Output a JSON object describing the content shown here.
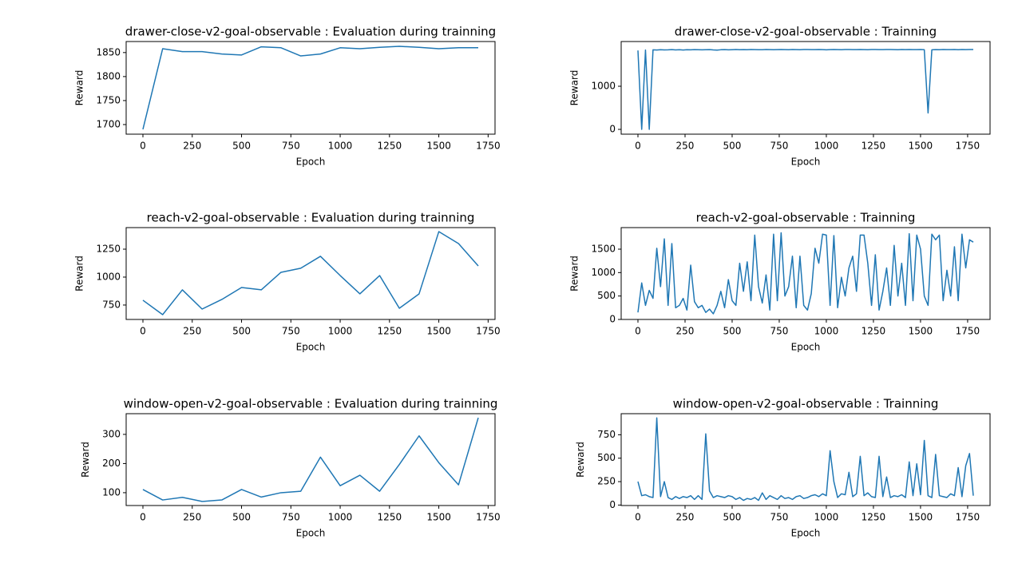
{
  "chart_data": [
    {
      "type": "line",
      "title": "drawer-close-v2-goal-observable : Evaluation during trainning",
      "xlabel": "Epoch",
      "ylabel": "Reward",
      "color": "#1f77b4",
      "x": [
        0,
        100,
        200,
        300,
        400,
        500,
        600,
        700,
        800,
        900,
        1000,
        1100,
        1200,
        1300,
        1400,
        1500,
        1600,
        1700
      ],
      "values": [
        1690,
        1858,
        1852,
        1852,
        1847,
        1845,
        1862,
        1860,
        1843,
        1847,
        1860,
        1858,
        1861,
        1863,
        1861,
        1858,
        1860,
        1860
      ],
      "xlim": [
        -85,
        1785
      ],
      "ylim": [
        1680,
        1873
      ],
      "xticks": [
        0,
        250,
        500,
        750,
        1000,
        1250,
        1500,
        1750
      ],
      "yticks": [
        1700,
        1750,
        1800,
        1850
      ]
    },
    {
      "type": "line",
      "title": "drawer-close-v2-goal-observable : Trainning",
      "xlabel": "Epoch",
      "ylabel": "Reward",
      "color": "#1f77b4",
      "x": [
        0,
        20,
        40,
        60,
        80,
        100,
        120,
        140,
        160,
        180,
        200,
        220,
        240,
        260,
        280,
        300,
        320,
        340,
        360,
        380,
        400,
        420,
        440,
        460,
        480,
        500,
        520,
        540,
        560,
        580,
        600,
        620,
        640,
        660,
        680,
        700,
        720,
        740,
        760,
        780,
        800,
        820,
        840,
        860,
        880,
        900,
        920,
        940,
        960,
        980,
        1000,
        1020,
        1040,
        1060,
        1080,
        1100,
        1120,
        1140,
        1160,
        1180,
        1200,
        1220,
        1240,
        1260,
        1280,
        1300,
        1320,
        1340,
        1360,
        1380,
        1400,
        1420,
        1440,
        1460,
        1480,
        1500,
        1520,
        1540,
        1560,
        1580,
        1600,
        1620,
        1640,
        1660,
        1680,
        1700,
        1720,
        1740,
        1760,
        1780
      ],
      "values": [
        1830,
        0,
        1840,
        0,
        1845,
        1840,
        1848,
        1842,
        1845,
        1850,
        1843,
        1846,
        1840,
        1848,
        1845,
        1850,
        1846,
        1844,
        1848,
        1850,
        1842,
        1838,
        1846,
        1850,
        1845,
        1848,
        1852,
        1846,
        1850,
        1848,
        1853,
        1850,
        1848,
        1846,
        1852,
        1850,
        1847,
        1849,
        1852,
        1850,
        1846,
        1852,
        1850,
        1848,
        1851,
        1853,
        1849,
        1850,
        1852,
        1850,
        1844,
        1849,
        1852,
        1850,
        1848,
        1851,
        1853,
        1850,
        1849,
        1852,
        1850,
        1848,
        1852,
        1853,
        1850,
        1849,
        1851,
        1852,
        1850,
        1848,
        1852,
        1850,
        1853,
        1849,
        1850,
        1852,
        1848,
        380,
        1845,
        1850,
        1848,
        1852,
        1849,
        1850,
        1851,
        1848,
        1852,
        1850,
        1851,
        1853
      ],
      "xlim": [
        -89,
        1869
      ],
      "ylim": [
        -111,
        2037
      ],
      "xticks": [
        0,
        250,
        500,
        750,
        1000,
        1250,
        1500,
        1750
      ],
      "yticks": [
        0,
        1000
      ]
    },
    {
      "type": "line",
      "title": "reach-v2-goal-observable : Evaluation during trainning",
      "xlabel": "Epoch",
      "ylabel": "Reward",
      "color": "#1f77b4",
      "x": [
        0,
        100,
        200,
        300,
        400,
        500,
        600,
        700,
        800,
        900,
        1000,
        1100,
        1200,
        1300,
        1400,
        1500,
        1600,
        1700
      ],
      "values": [
        793,
        664,
        886,
        714,
        800,
        907,
        886,
        1043,
        1079,
        1186,
        1014,
        850,
        1014,
        721,
        850,
        1407,
        1300,
        1100
      ],
      "xlim": [
        -85,
        1785
      ],
      "ylim": [
        621,
        1443
      ],
      "xticks": [
        0,
        250,
        500,
        750,
        1000,
        1250,
        1500,
        1750
      ],
      "yticks": [
        750,
        1000,
        1250
      ]
    },
    {
      "type": "line",
      "title": "reach-v2-goal-observable : Trainning",
      "xlabel": "Epoch",
      "ylabel": "Reward",
      "color": "#1f77b4",
      "x": [
        0,
        20,
        40,
        60,
        80,
        100,
        120,
        140,
        160,
        180,
        200,
        220,
        240,
        260,
        280,
        300,
        320,
        340,
        360,
        380,
        400,
        420,
        440,
        460,
        480,
        500,
        520,
        540,
        560,
        580,
        600,
        620,
        640,
        660,
        680,
        700,
        720,
        740,
        760,
        780,
        800,
        820,
        840,
        860,
        880,
        900,
        920,
        940,
        960,
        980,
        1000,
        1020,
        1040,
        1060,
        1080,
        1100,
        1120,
        1140,
        1160,
        1180,
        1200,
        1220,
        1240,
        1260,
        1280,
        1300,
        1320,
        1340,
        1360,
        1380,
        1400,
        1420,
        1440,
        1460,
        1480,
        1500,
        1520,
        1540,
        1560,
        1580,
        1600,
        1620,
        1640,
        1660,
        1680,
        1700,
        1720,
        1740,
        1760,
        1780
      ],
      "values": [
        150,
        780,
        300,
        620,
        450,
        1520,
        700,
        1720,
        300,
        1620,
        250,
        300,
        450,
        200,
        1160,
        380,
        250,
        300,
        150,
        220,
        120,
        300,
        600,
        250,
        850,
        400,
        300,
        1200,
        600,
        1230,
        400,
        1800,
        700,
        350,
        950,
        200,
        1820,
        400,
        1850,
        500,
        700,
        1350,
        250,
        1350,
        300,
        200,
        550,
        1520,
        1200,
        1820,
        1800,
        300,
        1790,
        250,
        900,
        500,
        1100,
        1350,
        600,
        1800,
        1800,
        1200,
        300,
        1380,
        200,
        600,
        1100,
        300,
        1580,
        500,
        1200,
        300,
        1830,
        400,
        1800,
        1500,
        500,
        300,
        1820,
        1700,
        1800,
        400,
        1050,
        500,
        1550,
        400,
        1820,
        1100,
        1700,
        1650
      ],
      "xlim": [
        -89,
        1869
      ],
      "ylim": [
        0,
        1960
      ],
      "xticks": [
        0,
        250,
        500,
        750,
        1000,
        1250,
        1500,
        1750
      ],
      "yticks": [
        0,
        500,
        1000,
        1500
      ]
    },
    {
      "type": "line",
      "title": "window-open-v2-goal-observable : Evaluation during trainning",
      "xlabel": "Epoch",
      "ylabel": "Reward",
      "color": "#1f77b4",
      "x": [
        0,
        100,
        200,
        300,
        400,
        500,
        600,
        700,
        800,
        900,
        1000,
        1100,
        1200,
        1300,
        1400,
        1500,
        1600,
        1700
      ],
      "values": [
        111,
        75,
        84,
        70,
        75,
        111,
        85,
        100,
        105,
        222,
        124,
        160,
        105,
        197,
        295,
        203,
        127,
        357
      ],
      "xlim": [
        -85,
        1785
      ],
      "ylim": [
        56,
        371
      ],
      "xticks": [
        0,
        250,
        500,
        750,
        1000,
        1250,
        1500,
        1750
      ],
      "yticks": [
        100,
        200,
        300
      ]
    },
    {
      "type": "line",
      "title": "window-open-v2-goal-observable : Trainning",
      "xlabel": "Epoch",
      "ylabel": "Reward",
      "color": "#1f77b4",
      "x": [
        0,
        20,
        40,
        60,
        80,
        100,
        120,
        140,
        160,
        180,
        200,
        220,
        240,
        260,
        280,
        300,
        320,
        340,
        360,
        380,
        400,
        420,
        440,
        460,
        480,
        500,
        520,
        540,
        560,
        580,
        600,
        620,
        640,
        660,
        680,
        700,
        720,
        740,
        760,
        780,
        800,
        820,
        840,
        860,
        880,
        900,
        920,
        940,
        960,
        980,
        1000,
        1020,
        1040,
        1060,
        1080,
        1100,
        1120,
        1140,
        1160,
        1180,
        1200,
        1220,
        1240,
        1260,
        1280,
        1300,
        1320,
        1340,
        1360,
        1380,
        1400,
        1420,
        1440,
        1460,
        1480,
        1500,
        1520,
        1540,
        1560,
        1580,
        1600,
        1620,
        1640,
        1660,
        1680,
        1700,
        1720,
        1740,
        1760,
        1780
      ],
      "values": [
        250,
        100,
        110,
        90,
        80,
        930,
        90,
        250,
        80,
        60,
        90,
        70,
        90,
        80,
        100,
        60,
        100,
        60,
        760,
        150,
        80,
        100,
        90,
        80,
        100,
        90,
        60,
        80,
        50,
        70,
        60,
        80,
        50,
        130,
        60,
        100,
        80,
        60,
        100,
        70,
        80,
        60,
        90,
        100,
        70,
        80,
        100,
        110,
        90,
        120,
        100,
        580,
        250,
        80,
        120,
        110,
        350,
        90,
        120,
        520,
        100,
        130,
        90,
        80,
        520,
        90,
        300,
        80,
        100,
        90,
        110,
        80,
        460,
        100,
        440,
        110,
        690,
        100,
        80,
        540,
        100,
        90,
        80,
        120,
        100,
        400,
        90,
        420,
        550,
        100
      ],
      "xlim": [
        -89,
        1869
      ],
      "ylim": [
        -5,
        975
      ],
      "xticks": [
        0,
        250,
        500,
        750,
        1000,
        1250,
        1500,
        1750
      ],
      "yticks": [
        0,
        250,
        500,
        750
      ]
    }
  ]
}
